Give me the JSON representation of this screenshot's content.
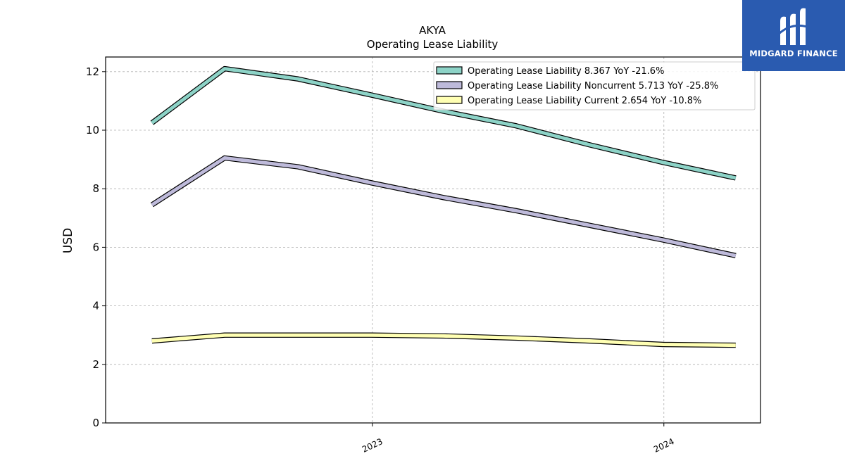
{
  "chart_data": {
    "type": "line",
    "title": "AKYA",
    "subtitle": "Operating Lease Liability",
    "ylabel": "USD",
    "xlabel": "",
    "ylim": [
      0,
      12.5
    ],
    "yticks": [
      0,
      2,
      4,
      6,
      8,
      10,
      12
    ],
    "x": [
      "2022-03-31",
      "2022-06-30",
      "2022-09-30",
      "2022-12-31",
      "2023-03-31",
      "2023-06-30",
      "2023-09-30",
      "2023-12-31",
      "2024-03-31"
    ],
    "xlim": [
      "2022-02-01",
      "2024-05-01"
    ],
    "xticks": [
      {
        "date": "2023-01-01",
        "label": "2023"
      },
      {
        "date": "2024-01-01",
        "label": "2024"
      }
    ],
    "grid": true,
    "legend_position": "top-right",
    "series": [
      {
        "name": "Operating Lease Liability  8.367 YoY -21.6%",
        "color": "#8dd3c7",
        "values": [
          10.25,
          12.1,
          11.75,
          11.2,
          10.65,
          10.15,
          9.5,
          8.9,
          8.367
        ]
      },
      {
        "name": "Operating Lease Liability Noncurrent  5.713 YoY -25.8%",
        "color": "#bebada",
        "values": [
          7.45,
          9.05,
          8.75,
          8.2,
          7.7,
          7.25,
          6.75,
          6.25,
          5.713
        ]
      },
      {
        "name": "Operating Lease Liability Current  2.654 YoY -10.8%",
        "color": "#ffffb3",
        "values": [
          2.8,
          3.0,
          3.0,
          3.0,
          2.97,
          2.9,
          2.8,
          2.68,
          2.654
        ]
      }
    ]
  },
  "logo": {
    "text": "MIDGARD FINANCE",
    "background": "#2a5bb0",
    "icon": "midgard-logo-icon"
  }
}
